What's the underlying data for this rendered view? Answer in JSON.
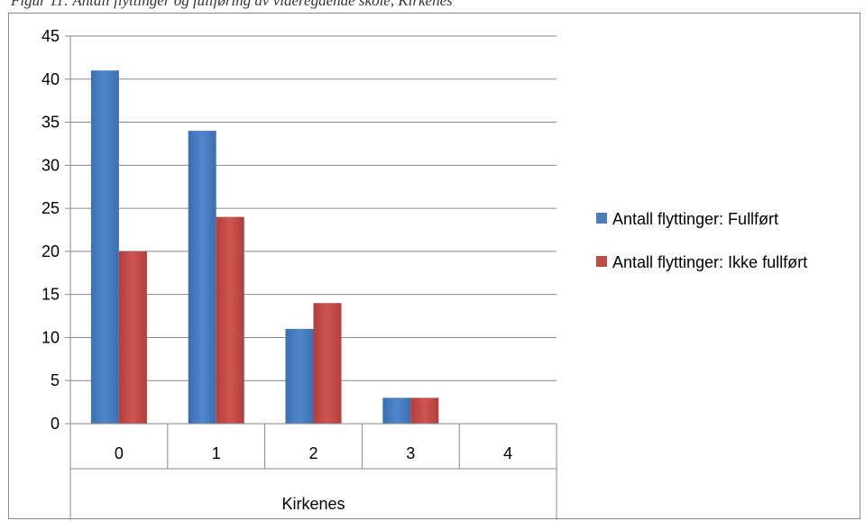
{
  "caption": "Figur 11: Antall flyttinger og fullføring av videregående skole, Kirkenes",
  "chart_data": {
    "type": "bar",
    "categories": [
      "0",
      "1",
      "2",
      "3",
      "4"
    ],
    "group_label": "Kirkenes",
    "series": [
      {
        "name": "Antall flyttinger: Fullført",
        "values": [
          41,
          34,
          11,
          3,
          0
        ],
        "color": "#4a7ebb"
      },
      {
        "name": "Antall flyttinger: Ikke fullført",
        "values": [
          20,
          24,
          14,
          3,
          0
        ],
        "color": "#be4b48"
      }
    ],
    "ylim": [
      0,
      45
    ],
    "yticks": [
      0,
      5,
      10,
      15,
      20,
      25,
      30,
      35,
      40,
      45
    ],
    "grid": true,
    "legend_position": "right"
  }
}
